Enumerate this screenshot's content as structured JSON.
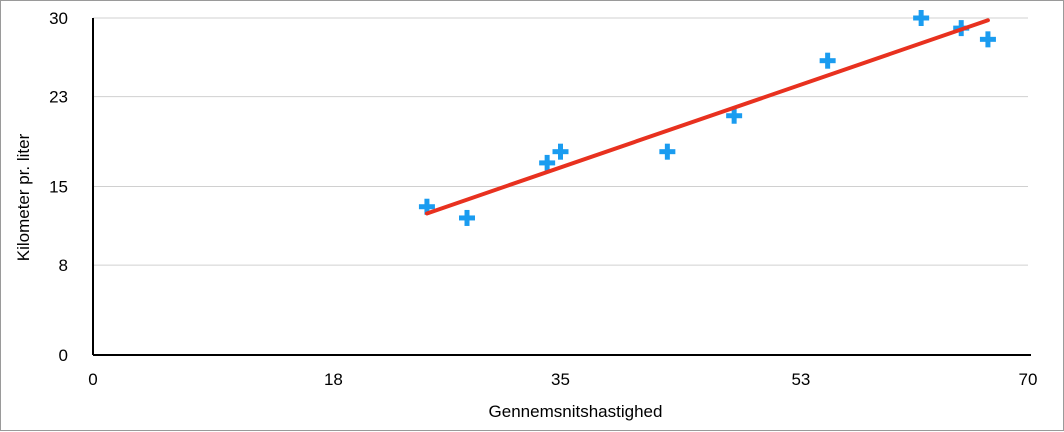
{
  "chart_data": {
    "type": "scatter",
    "title": "",
    "xlabel": "Gennemsnitshastighed",
    "ylabel": "Kilometer pr. liter",
    "xlim": [
      0,
      70
    ],
    "ylim": [
      0,
      30
    ],
    "xticks": [
      "0",
      "18",
      "35",
      "53",
      "70"
    ],
    "yticks": [
      "0",
      "8",
      "15",
      "23",
      "30"
    ],
    "grid": "horizontal",
    "legend": "none",
    "marker": "plus",
    "colors": {
      "points": "#1a9cf0",
      "trendline": "#e8311f"
    },
    "points": [
      {
        "x": 25,
        "y": 13.2
      },
      {
        "x": 28,
        "y": 12.2
      },
      {
        "x": 34,
        "y": 17.1
      },
      {
        "x": 35,
        "y": 18.1
      },
      {
        "x": 43,
        "y": 18.1
      },
      {
        "x": 48,
        "y": 21.3
      },
      {
        "x": 55,
        "y": 26.2
      },
      {
        "x": 62,
        "y": 30.0
      },
      {
        "x": 65,
        "y": 29.1
      },
      {
        "x": 67,
        "y": 28.1
      }
    ],
    "trendline": {
      "type": "linear",
      "x": [
        25,
        67
      ],
      "y": [
        12.6,
        29.8
      ]
    }
  }
}
